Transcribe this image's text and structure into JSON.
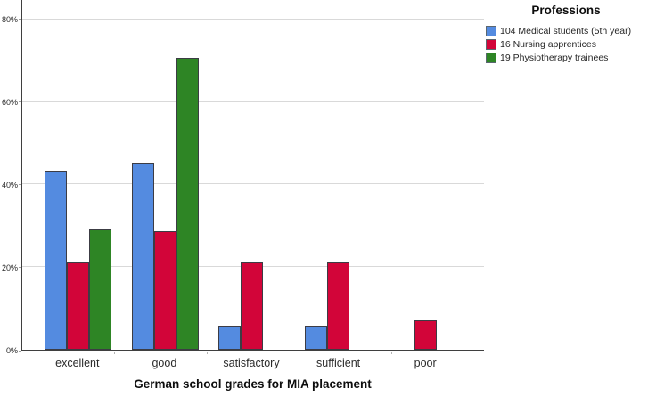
{
  "chart_data": {
    "type": "bar",
    "title": "",
    "xlabel": "German school grades for MIA placement",
    "ylabel": "",
    "legend_title": "Professions",
    "legend_position": "top-right",
    "grid": true,
    "ylim": [
      0,
      84.7
    ],
    "yticks": [
      {
        "value": 0,
        "label": "0%"
      },
      {
        "value": 20,
        "label": "20%"
      },
      {
        "value": 40,
        "label": "40%"
      },
      {
        "value": 60,
        "label": "60%"
      },
      {
        "value": 80,
        "label": "80%"
      }
    ],
    "categories": [
      "excellent",
      "good",
      "satisfactory",
      "sufficient",
      "poor"
    ],
    "series": [
      {
        "name": "104 Medical students (5th year)",
        "color": "#548BE0",
        "values": [
          43.3,
          45.2,
          5.8,
          5.8,
          0
        ]
      },
      {
        "name": "16 Nursing apprentices",
        "color": "#D20539",
        "values": [
          21.4,
          28.6,
          21.4,
          21.4,
          7.1
        ]
      },
      {
        "name": "19 Physiotherapy trainees",
        "color": "#2E8525",
        "values": [
          29.4,
          70.6,
          0,
          0,
          0
        ]
      }
    ]
  },
  "colors": {
    "axis": "#3f3f3f",
    "grid": "#d9d9d9",
    "bar_border": "#3c3c44",
    "tick": "#9e9e9e",
    "text": "#2b2b2b"
  }
}
